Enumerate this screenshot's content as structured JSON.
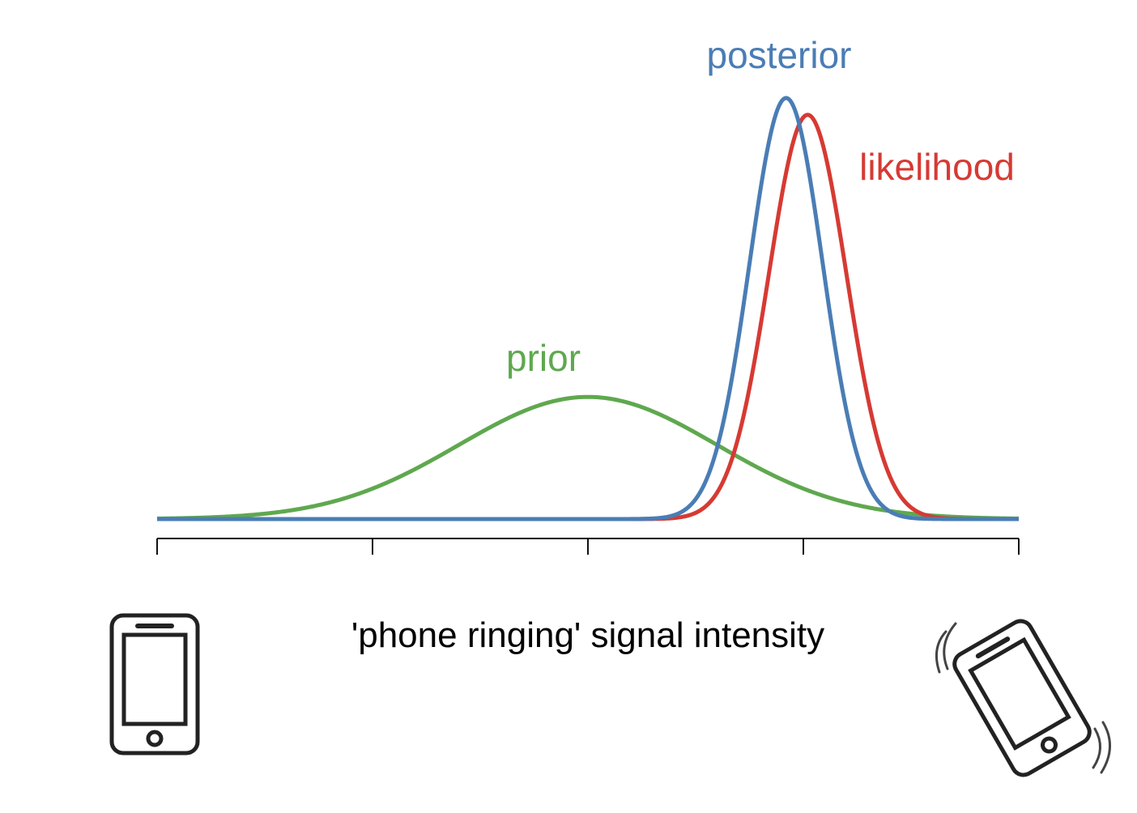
{
  "xlabel": "'phone ringing' signal intensity",
  "colors": {
    "prior": "#5fa84f",
    "likelihood": "#d63a33",
    "posterior": "#4a7db5",
    "axis": "#111111",
    "icon": "#222222"
  },
  "chart_data": {
    "type": "line",
    "xlim": [
      0,
      4
    ],
    "ylim": [
      0,
      1
    ],
    "x_ticks": 5,
    "tick_labels": [],
    "axis_label": "'phone ringing' signal intensity",
    "series": [
      {
        "name": "prior",
        "mean": 2.0,
        "sd": 0.6,
        "peak": 0.29,
        "color": "#5fa84f"
      },
      {
        "name": "likelihood",
        "mean": 3.02,
        "sd": 0.18,
        "peak": 0.96,
        "color": "#d63a33"
      },
      {
        "name": "posterior",
        "mean": 2.92,
        "sd": 0.17,
        "peak": 1.0,
        "color": "#4a7db5"
      }
    ]
  },
  "icons": {
    "left": "phone-still-icon",
    "right": "phone-ringing-icon"
  }
}
